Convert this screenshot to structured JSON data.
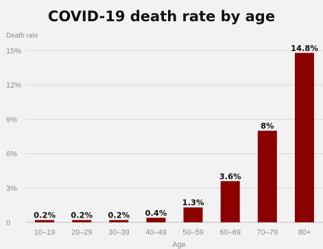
{
  "chart_data": {
    "type": "bar",
    "title": "COVID-19 death rate by age",
    "ylabel": "Death rate",
    "xlabel": "Age",
    "categories": [
      "10–19",
      "20–29",
      "30–39",
      "40–49",
      "50–59",
      "60–69",
      "70–79",
      "80+"
    ],
    "values": [
      0.2,
      0.2,
      0.2,
      0.4,
      1.3,
      3.6,
      8,
      14.8
    ],
    "data_labels": [
      "0.2%",
      "0.2%",
      "0.2%",
      "0.4%",
      "1.3%",
      "3.6%",
      "8%",
      "14.8%"
    ],
    "yticks": [
      0,
      3,
      6,
      9,
      12,
      15
    ],
    "ytick_labels": [
      "0",
      "3%",
      "6%",
      "9%",
      "12%",
      "15%"
    ],
    "ylim": [
      0,
      15
    ],
    "grid": true,
    "bar_color": "#8b0000"
  }
}
